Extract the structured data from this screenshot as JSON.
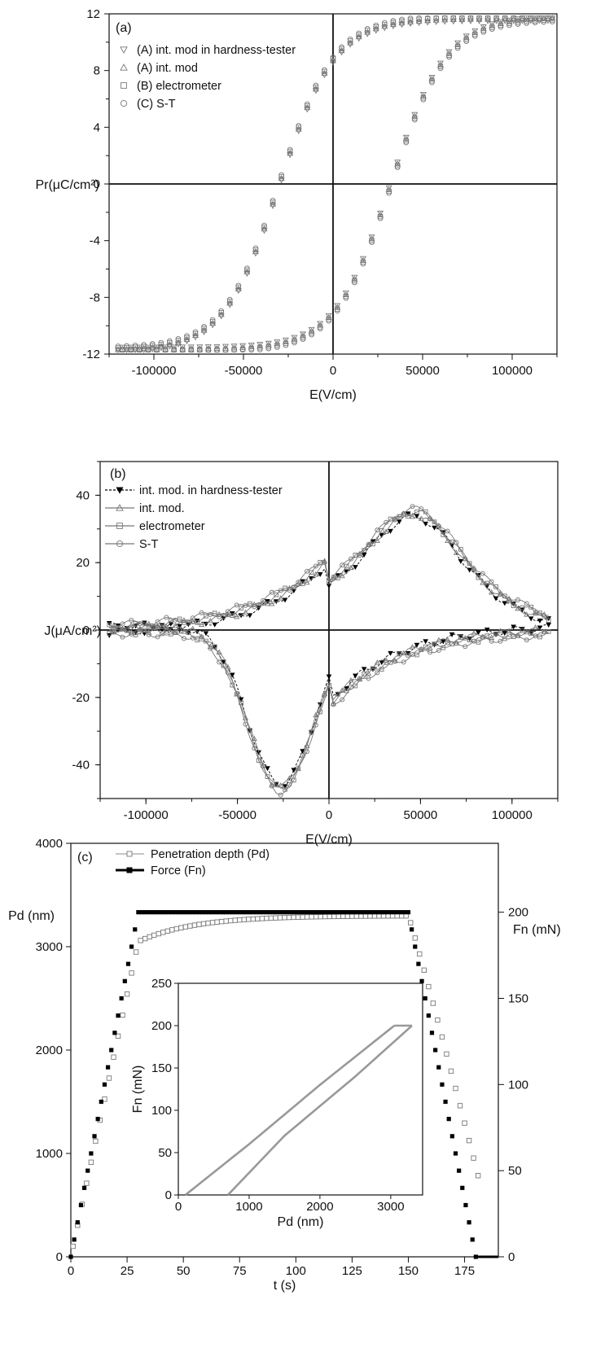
{
  "chart_data": [
    {
      "type": "scatter",
      "panel": "(a)",
      "xlabel": "E(V/cm)",
      "ylabel": "Pr(μC/cm²)",
      "xlim": [
        -125000,
        125000
      ],
      "ylim": [
        -12,
        12
      ],
      "xticks": [
        "-100000",
        "-50000",
        "0",
        "50000",
        "100000"
      ],
      "yticks": [
        "12",
        "8",
        "4",
        "0",
        "-4",
        "-8",
        "-12"
      ],
      "legend": {
        "position": "top-left",
        "items": [
          "(A) int. mod in hardness-tester",
          "(A) int. mod",
          "(B) electrometer",
          "(C) S-T"
        ]
      },
      "loop": {
        "Emax": 120000,
        "Pmax": 11.7,
        "Ec": 30000,
        "Pr": 7.5
      },
      "series": [
        {
          "name": "(A) int. mod in hardness-tester",
          "marker": "triangle-down"
        },
        {
          "name": "(A) int. mod",
          "marker": "triangle-up"
        },
        {
          "name": "(B) electrometer",
          "marker": "square"
        },
        {
          "name": "(C) S-T",
          "marker": "circle"
        }
      ]
    },
    {
      "type": "line",
      "panel": "(b)",
      "xlabel": "E(V/cm)",
      "ylabel": "J(μA/cm²)",
      "xlim": [
        -125000,
        125000
      ],
      "ylim": [
        -50,
        50
      ],
      "xticks": [
        "-100000",
        "-50000",
        "0",
        "50000",
        "100000"
      ],
      "yticks": [
        "40",
        "20",
        "0",
        "-20",
        "-40"
      ],
      "legend": {
        "position": "top-left",
        "items": [
          "int. mod. in hardness-tester",
          "int. mod.",
          "electrometer",
          "S-T"
        ]
      },
      "upper_branch": {
        "peak_E": 45000,
        "peak_J": 34,
        "J_at_0": 22
      },
      "lower_branch": {
        "peak_E": -28000,
        "peak_J": -44,
        "J_at_0": -23
      },
      "series": [
        {
          "name": "int. mod. in hardness-tester",
          "marker": "filled-triangle-down"
        },
        {
          "name": "int. mod.",
          "marker": "triangle-up"
        },
        {
          "name": "electrometer",
          "marker": "square"
        },
        {
          "name": "S-T",
          "marker": "circle"
        }
      ]
    },
    {
      "type": "scatter",
      "panel": "(c)",
      "xlabel": "t (s)",
      "ylabel_left": "Pd (nm)",
      "ylabel_right": "Fn (mN)",
      "xlim": [
        0,
        190
      ],
      "ylim_left": [
        0,
        4000
      ],
      "ylim_right": [
        0,
        240
      ],
      "xticks": [
        "0",
        "25",
        "50",
        "75",
        "100",
        "125",
        "150",
        "175"
      ],
      "yticks_left": [
        "0",
        "1000",
        "2000",
        "3000",
        "4000"
      ],
      "yticks_right": [
        "0",
        "50",
        "100",
        "150",
        "200"
      ],
      "legend": {
        "position": "top-left",
        "items": [
          "Penetration depth (Pd)",
          "Force (Fn)"
        ]
      },
      "series": [
        {
          "name": "Penetration depth (Pd)",
          "marker": "open-square",
          "axis": "left",
          "segments": {
            "load_end_t": 30,
            "depth_at_load_end": 3050,
            "hold_end_t": 150,
            "depth_at_hold_end": 3300,
            "final_t": 182,
            "final_depth": 700
          }
        },
        {
          "name": "Force (Fn)",
          "marker": "filled-square",
          "axis": "right",
          "segments": {
            "load_end_t": 30,
            "max_force": 200,
            "hold_end_t": 150,
            "unload_end_t": 180
          }
        }
      ],
      "inset": {
        "type": "line",
        "xlabel": "Pd (nm)",
        "ylabel": "Fn (mN)",
        "xlim": [
          0,
          3450
        ],
        "ylim": [
          0,
          250
        ],
        "xticks": [
          "0",
          "1000",
          "2000",
          "3000"
        ],
        "yticks": [
          "0",
          "50",
          "100",
          "150",
          "200",
          "250"
        ],
        "loading": {
          "x": [
            100,
            1000,
            2000,
            3050
          ],
          "y": [
            0,
            60,
            130,
            200
          ]
        },
        "hold": {
          "x": [
            3050,
            3300
          ],
          "y": [
            200,
            200
          ]
        },
        "unloading": {
          "x": [
            3300,
            2500,
            1500,
            700
          ],
          "y": [
            200,
            140,
            70,
            0
          ]
        }
      }
    }
  ]
}
